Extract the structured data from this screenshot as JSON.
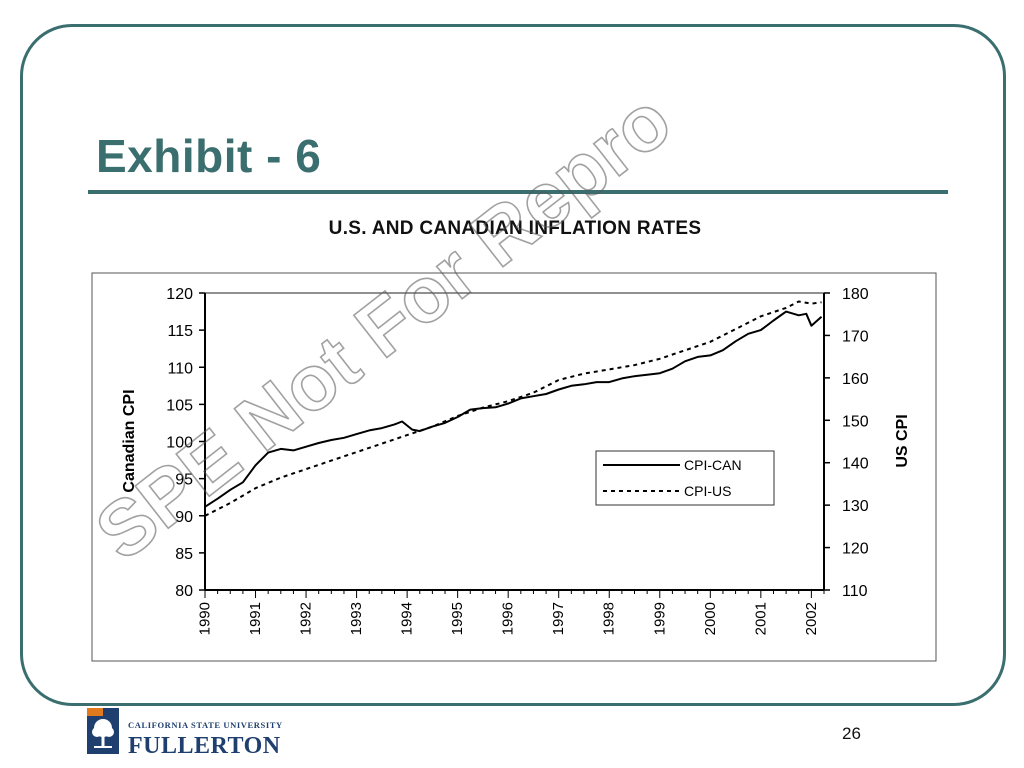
{
  "slide": {
    "title": "Exhibit - 6",
    "page_number": "26"
  },
  "logo": {
    "university": "CALIFORNIA STATE UNIVERSITY",
    "campus": "FULLERTON",
    "icon": "tree-icon"
  },
  "watermark": {
    "text": "SPE Not For Repro"
  },
  "colors": {
    "accent": "#3b6e6e",
    "logo_blue": "#1f3f6e",
    "logo_orange": "#e07a1f"
  },
  "chart_data": {
    "type": "line",
    "title": "U.S. AND CANADIAN INFLATION RATES",
    "ylabel": "Canadian CPI",
    "y2label": "US CPI",
    "ylim": [
      80,
      120
    ],
    "y2lim": [
      110,
      180
    ],
    "xlim": [
      1990,
      2002.25
    ],
    "yticks": [
      80,
      85,
      90,
      95,
      100,
      105,
      110,
      115,
      120
    ],
    "y2ticks": [
      110,
      120,
      130,
      140,
      150,
      160,
      170,
      180
    ],
    "xticks": [
      "1990",
      "1991",
      "1992",
      "1993",
      "1994",
      "1995",
      "1996",
      "1997",
      "1998",
      "1999",
      "2000",
      "2001",
      "2002"
    ],
    "legend_position": "center-right",
    "grid": false,
    "series": [
      {
        "name": "CPI-CAN",
        "axis": "left",
        "style": "solid",
        "x": [
          1990.0,
          1990.25,
          1990.5,
          1990.75,
          1991.0,
          1991.25,
          1991.5,
          1991.75,
          1992.0,
          1992.25,
          1992.5,
          1992.75,
          1993.0,
          1993.25,
          1993.5,
          1993.75,
          1993.9,
          1994.1,
          1994.25,
          1994.5,
          1994.75,
          1995.0,
          1995.25,
          1995.5,
          1995.75,
          1996.0,
          1996.25,
          1996.5,
          1996.75,
          1997.0,
          1997.25,
          1997.5,
          1997.75,
          1998.0,
          1998.25,
          1998.5,
          1998.75,
          1999.0,
          1999.25,
          1999.5,
          1999.75,
          2000.0,
          2000.25,
          2000.5,
          2000.75,
          2001.0,
          2001.25,
          2001.5,
          2001.75,
          2001.9,
          2002.0,
          2002.2
        ],
        "values": [
          91.2,
          92.3,
          93.5,
          94.5,
          96.8,
          98.5,
          99.0,
          98.8,
          99.3,
          99.8,
          100.2,
          100.5,
          101.0,
          101.5,
          101.8,
          102.3,
          102.7,
          101.6,
          101.4,
          102.0,
          102.5,
          103.3,
          104.3,
          104.5,
          104.6,
          105.1,
          105.8,
          106.1,
          106.4,
          107.0,
          107.5,
          107.7,
          108.0,
          108.0,
          108.5,
          108.8,
          109.0,
          109.2,
          109.8,
          110.8,
          111.4,
          111.6,
          112.3,
          113.5,
          114.5,
          115.0,
          116.3,
          117.5,
          117.0,
          117.2,
          115.6,
          116.8
        ]
      },
      {
        "name": "CPI-US",
        "axis": "right",
        "style": "dotted",
        "x": [
          1990.0,
          1990.5,
          1991.0,
          1991.5,
          1992.0,
          1992.5,
          1993.0,
          1993.5,
          1994.0,
          1994.5,
          1995.0,
          1995.5,
          1996.0,
          1996.5,
          1997.0,
          1997.5,
          1998.0,
          1998.5,
          1999.0,
          1999.5,
          2000.0,
          2000.5,
          2001.0,
          2001.5,
          2001.75,
          2002.0,
          2002.2
        ],
        "values": [
          127.5,
          130.5,
          134.0,
          136.5,
          138.5,
          140.5,
          142.5,
          144.5,
          146.5,
          148.5,
          151.0,
          153.0,
          154.5,
          156.5,
          159.5,
          161.0,
          162.0,
          163.0,
          164.5,
          166.5,
          168.5,
          171.5,
          174.5,
          176.5,
          178.0,
          177.5,
          177.8
        ]
      }
    ]
  }
}
